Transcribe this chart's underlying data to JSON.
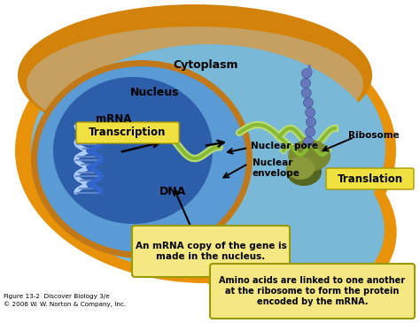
{
  "bg_color": "#ffffff",
  "cell_outer_color": "#e8920a",
  "cell_inner_color": "#7ab8d8",
  "nucleus_border_color": "#c07818",
  "nucleus_mid_color": "#5590cc",
  "nucleus_core_color": "#2255aa",
  "callout_box1_text": "An mRNA copy of the gene is\nmade in the nucleus.",
  "callout_box2_text": "Amino acids are linked to one another\nat the ribosome to form the protein\nencoded by the mRNA.",
  "callout_box_bg": "#f5e882",
  "callout_box_border": "#999900",
  "label_transcription": "Transcription",
  "label_translation": "Translation",
  "label_dna": "DNA",
  "label_mrna": "mRNA",
  "label_nucleus": "Nucleus",
  "label_cytoplasm": "Cytoplasm",
  "label_nuclear_envelope": "Nuclear\nenvelope",
  "label_nuclear_pore": "Nuclear pore",
  "label_ribosome": "Ribosome",
  "figure_caption": "Figure 13-2  Discover Biology 3/e\n© 2006 W. W. Norton & Company, Inc.",
  "yellow_label_bg": "#f0e040",
  "yellow_label_border": "#aa9900",
  "dna_blue": "#3366cc",
  "dna_white": "#aaccff",
  "mrna_green": "#88bb33",
  "mrna_light": "#bbdd77",
  "ribosome_color": "#7a8a30",
  "ribosome_dark": "#556620",
  "poly_color": "#6677bb"
}
